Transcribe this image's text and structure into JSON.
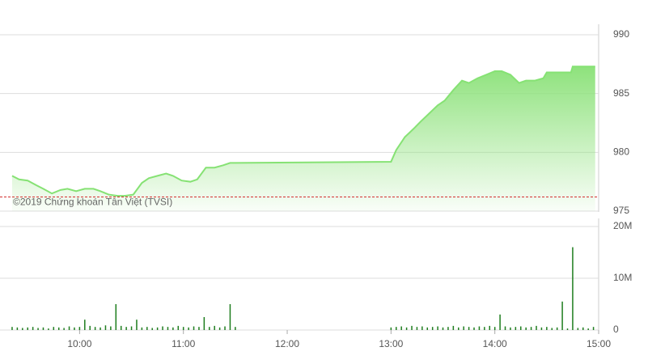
{
  "chart_data": [
    {
      "type": "area",
      "color": "#86e274",
      "watermark": "©2019 Chứng khoán Tân Việt (TVSI)",
      "x": [
        561,
        565,
        570,
        575,
        579,
        584,
        589,
        593,
        598,
        603,
        608,
        612,
        617,
        622,
        626,
        631,
        636,
        640,
        645,
        650,
        654,
        659,
        664,
        668,
        673,
        678,
        683,
        687,
        690,
        780,
        783,
        788,
        793,
        797,
        802,
        807,
        811,
        816,
        821,
        825,
        830,
        835,
        840,
        844,
        849,
        854,
        858,
        863,
        868,
        870,
        877,
        884,
        885,
        898
      ],
      "values": [
        978.0,
        977.7,
        977.6,
        977.2,
        976.9,
        976.5,
        976.8,
        976.9,
        976.7,
        976.9,
        976.9,
        976.7,
        976.4,
        976.3,
        976.3,
        976.4,
        977.4,
        977.8,
        978.0,
        978.2,
        978.0,
        977.6,
        977.5,
        977.7,
        978.7,
        978.7,
        978.9,
        979.1,
        979.1,
        979.2,
        980.2,
        981.3,
        982.0,
        982.6,
        983.3,
        984.0,
        984.4,
        985.3,
        986.1,
        985.9,
        986.3,
        986.6,
        986.9,
        986.9,
        986.6,
        985.9,
        986.1,
        986.1,
        986.3,
        986.8,
        986.8,
        986.8,
        987.3,
        987.3
      ],
      "reference_line": 976.2,
      "reference_color": "#d32f2f",
      "xlim": [
        554,
        900
      ],
      "ylim": [
        975,
        990
      ],
      "yticks": [
        975,
        980,
        985,
        990
      ],
      "grid": true
    },
    {
      "type": "bar",
      "color": "#1e7d1e",
      "x": [
        561,
        564,
        567,
        570,
        573,
        576,
        579,
        582,
        585,
        588,
        591,
        594,
        597,
        600,
        603,
        606,
        609,
        612,
        615,
        618,
        621,
        624,
        627,
        630,
        633,
        636,
        639,
        642,
        645,
        648,
        651,
        654,
        657,
        660,
        663,
        666,
        669,
        672,
        675,
        678,
        681,
        684,
        687,
        690,
        780,
        783,
        786,
        789,
        792,
        795,
        798,
        801,
        804,
        807,
        810,
        813,
        816,
        819,
        822,
        825,
        828,
        831,
        834,
        837,
        840,
        843,
        846,
        849,
        852,
        855,
        858,
        861,
        864,
        867,
        870,
        873,
        876,
        879,
        882,
        885,
        888,
        891,
        894,
        897
      ],
      "values": [
        0.6,
        0.5,
        0.4,
        0.5,
        0.6,
        0.4,
        0.5,
        0.3,
        0.6,
        0.5,
        0.4,
        0.7,
        0.5,
        0.6,
        2.0,
        0.8,
        0.6,
        0.5,
        0.9,
        0.7,
        5.0,
        0.8,
        0.6,
        0.7,
        2.0,
        0.5,
        0.6,
        0.4,
        0.5,
        0.7,
        0.6,
        0.5,
        0.8,
        0.6,
        0.5,
        0.7,
        0.6,
        2.5,
        0.6,
        0.8,
        0.5,
        0.7,
        5.0,
        0.6,
        0.5,
        0.6,
        0.7,
        0.5,
        0.8,
        0.6,
        0.7,
        0.5,
        0.6,
        0.7,
        0.5,
        0.6,
        0.8,
        0.5,
        0.7,
        0.6,
        0.5,
        0.7,
        0.6,
        0.8,
        0.6,
        3.0,
        0.7,
        0.5,
        0.6,
        0.7,
        0.5,
        0.6,
        0.8,
        0.5,
        0.6,
        0.4,
        0.5,
        5.5,
        0.3,
        16.0,
        0.4,
        0.5,
        0.3,
        0.6
      ],
      "xlim": [
        554,
        900
      ],
      "xticks": [
        {
          "value": 600,
          "label": "10:00"
        },
        {
          "value": 660,
          "label": "11:00"
        },
        {
          "value": 720,
          "label": "12:00"
        },
        {
          "value": 780,
          "label": "13:00"
        },
        {
          "value": 840,
          "label": "14:00"
        },
        {
          "value": 900,
          "label": "15:00"
        }
      ],
      "ylim": [
        0,
        20
      ],
      "yticks": [
        0,
        {
          "value": 10,
          "label": "10M"
        },
        {
          "value": 20,
          "label": "20M"
        }
      ],
      "grid": true
    }
  ]
}
